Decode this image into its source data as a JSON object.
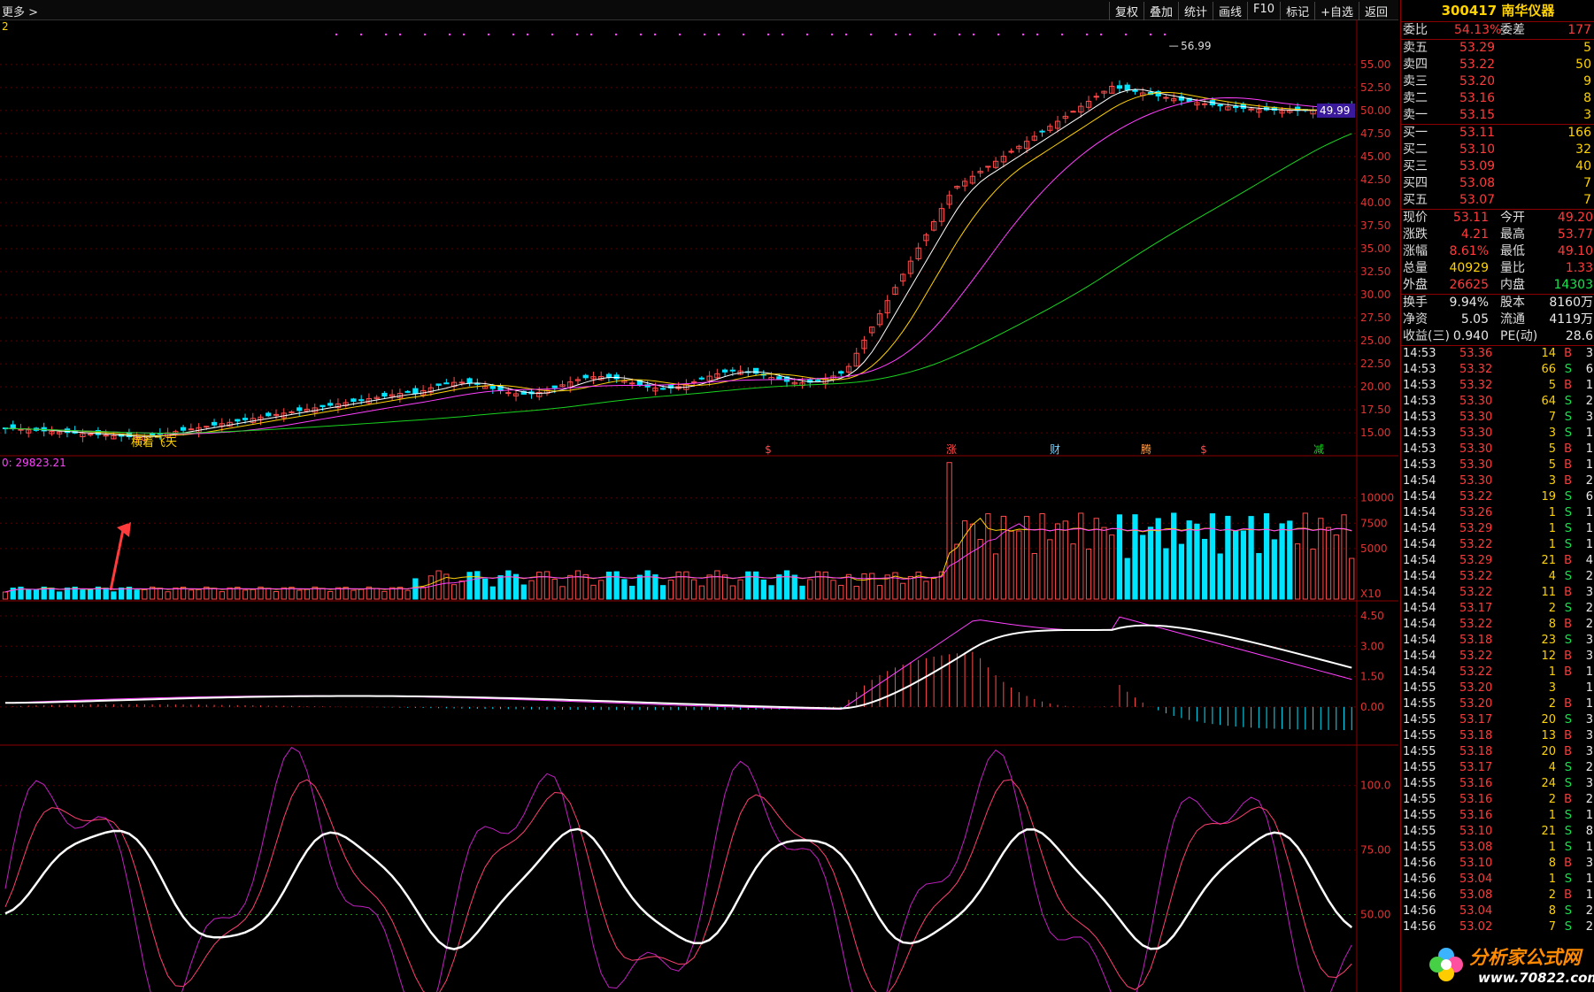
{
  "topbar": {
    "more_label": "更多 >"
  },
  "toolbar": [
    "复权",
    "叠加",
    "统计",
    "画线",
    "F10",
    "标记",
    "+自选",
    "返回"
  ],
  "chart": {
    "ma_flag": "2",
    "price_ticks": [
      "55.00",
      "52.50",
      "50.00",
      "47.50",
      "45.00",
      "42.50",
      "40.00",
      "37.50",
      "35.00",
      "32.50",
      "30.00",
      "27.50",
      "25.00",
      "22.50",
      "20.00",
      "17.50",
      "15.00"
    ],
    "high_label": "56.99",
    "current_price_badge": "49.99",
    "annotation_text": "横着飞天",
    "event_markers": [
      "$",
      "涨",
      "财",
      "腾",
      "$",
      "减"
    ],
    "volume_label": "0: 29823.21",
    "volume_ticks": [
      "10000",
      "7500",
      "5000"
    ],
    "volume_unit": "X10",
    "macd_ticks": [
      "4.50",
      "3.00",
      "1.50",
      "0.00"
    ],
    "kdj_ticks": [
      "100.0",
      "75.00",
      "50.00"
    ],
    "colors": {
      "up": "#ff4b4b",
      "down": "#00e5ff",
      "ma5": "#ffffff",
      "ma10": "#ffd200",
      "ma20": "#ff40ff",
      "ma60": "#19d31f"
    }
  },
  "quote": {
    "code": "300417",
    "name": "南华仪器",
    "weibi_label": "委比",
    "weibi_value": "54.13%",
    "weicha_label": "委差",
    "weicha_value": "177",
    "asks": [
      {
        "label": "卖五",
        "price": "53.29",
        "vol": "5"
      },
      {
        "label": "卖四",
        "price": "53.22",
        "vol": "50"
      },
      {
        "label": "卖三",
        "price": "53.20",
        "vol": "9"
      },
      {
        "label": "卖二",
        "price": "53.16",
        "vol": "8"
      },
      {
        "label": "卖一",
        "price": "53.15",
        "vol": "3"
      }
    ],
    "bids": [
      {
        "label": "买一",
        "price": "53.11",
        "vol": "166"
      },
      {
        "label": "买二",
        "price": "53.10",
        "vol": "32"
      },
      {
        "label": "买三",
        "price": "53.09",
        "vol": "40"
      },
      {
        "label": "买四",
        "price": "53.08",
        "vol": "7"
      },
      {
        "label": "买五",
        "price": "53.07",
        "vol": "7"
      }
    ],
    "stats": [
      {
        "l1": "现价",
        "v1": "53.11",
        "c1": "red",
        "l2": "今开",
        "v2": "49.20",
        "c2": "red"
      },
      {
        "l1": "涨跌",
        "v1": "4.21",
        "c1": "red",
        "l2": "最高",
        "v2": "53.77",
        "c2": "red"
      },
      {
        "l1": "涨幅",
        "v1": "8.61%",
        "c1": "red",
        "l2": "最低",
        "v2": "49.10",
        "c2": "red"
      },
      {
        "l1": "总量",
        "v1": "40929",
        "c1": "yel",
        "l2": "量比",
        "v2": "1.33",
        "c2": "red"
      },
      {
        "l1": "外盘",
        "v1": "26625",
        "c1": "red",
        "l2": "内盘",
        "v2": "14303",
        "c2": "green"
      }
    ],
    "stats2": [
      {
        "l1": "换手",
        "v1": "9.94%",
        "l2": "股本",
        "v2": "8160万"
      },
      {
        "l1": "净资",
        "v1": "5.05",
        "l2": "流通",
        "v2": "4119万"
      },
      {
        "l1": "收益(三)",
        "v1": "0.940",
        "l2": "PE(动)",
        "v2": "28.6"
      }
    ]
  },
  "ticks": [
    {
      "t": "14:53",
      "p": "53.36",
      "v": "14",
      "d": "B",
      "n": "3"
    },
    {
      "t": "14:53",
      "p": "53.32",
      "v": "66",
      "d": "S",
      "n": "6"
    },
    {
      "t": "14:53",
      "p": "53.32",
      "v": "5",
      "d": "B",
      "n": "1"
    },
    {
      "t": "14:53",
      "p": "53.30",
      "v": "64",
      "d": "S",
      "n": "2"
    },
    {
      "t": "14:53",
      "p": "53.30",
      "v": "7",
      "d": "S",
      "n": "3"
    },
    {
      "t": "14:53",
      "p": "53.30",
      "v": "3",
      "d": "S",
      "n": "1"
    },
    {
      "t": "14:53",
      "p": "53.30",
      "v": "5",
      "d": "B",
      "n": "1"
    },
    {
      "t": "14:53",
      "p": "53.30",
      "v": "5",
      "d": "B",
      "n": "1"
    },
    {
      "t": "14:54",
      "p": "53.30",
      "v": "3",
      "d": "B",
      "n": "2"
    },
    {
      "t": "14:54",
      "p": "53.22",
      "v": "19",
      "d": "S",
      "n": "6"
    },
    {
      "t": "14:54",
      "p": "53.26",
      "v": "1",
      "d": "S",
      "n": "1"
    },
    {
      "t": "14:54",
      "p": "53.29",
      "v": "1",
      "d": "S",
      "n": "1"
    },
    {
      "t": "14:54",
      "p": "53.22",
      "v": "1",
      "d": "S",
      "n": "1"
    },
    {
      "t": "14:54",
      "p": "53.29",
      "v": "21",
      "d": "B",
      "n": "4"
    },
    {
      "t": "14:54",
      "p": "53.22",
      "v": "4",
      "d": "S",
      "n": "2"
    },
    {
      "t": "14:54",
      "p": "53.22",
      "v": "11",
      "d": "B",
      "n": "3"
    },
    {
      "t": "14:54",
      "p": "53.17",
      "v": "2",
      "d": "S",
      "n": "2"
    },
    {
      "t": "14:54",
      "p": "53.22",
      "v": "8",
      "d": "B",
      "n": "2"
    },
    {
      "t": "14:54",
      "p": "53.18",
      "v": "23",
      "d": "S",
      "n": "3"
    },
    {
      "t": "14:54",
      "p": "53.22",
      "v": "12",
      "d": "B",
      "n": "3"
    },
    {
      "t": "14:54",
      "p": "53.22",
      "v": "1",
      "d": "B",
      "n": "1"
    },
    {
      "t": "14:55",
      "p": "53.20",
      "v": "3",
      "d": "",
      "n": "1"
    },
    {
      "t": "14:55",
      "p": "53.20",
      "v": "2",
      "d": "B",
      "n": "1"
    },
    {
      "t": "14:55",
      "p": "53.17",
      "v": "20",
      "d": "S",
      "n": "3"
    },
    {
      "t": "14:55",
      "p": "53.18",
      "v": "13",
      "d": "B",
      "n": "3"
    },
    {
      "t": "14:55",
      "p": "53.18",
      "v": "20",
      "d": "B",
      "n": "3"
    },
    {
      "t": "14:55",
      "p": "53.17",
      "v": "4",
      "d": "S",
      "n": "2"
    },
    {
      "t": "14:55",
      "p": "53.16",
      "v": "24",
      "d": "S",
      "n": "3"
    },
    {
      "t": "14:55",
      "p": "53.16",
      "v": "2",
      "d": "B",
      "n": "2"
    },
    {
      "t": "14:55",
      "p": "53.16",
      "v": "1",
      "d": "S",
      "n": "1"
    },
    {
      "t": "14:55",
      "p": "53.10",
      "v": "21",
      "d": "S",
      "n": "8"
    },
    {
      "t": "14:55",
      "p": "53.08",
      "v": "1",
      "d": "S",
      "n": "1"
    },
    {
      "t": "14:56",
      "p": "53.10",
      "v": "8",
      "d": "B",
      "n": "3"
    },
    {
      "t": "14:56",
      "p": "53.04",
      "v": "1",
      "d": "S",
      "n": "1"
    },
    {
      "t": "14:56",
      "p": "53.08",
      "v": "2",
      "d": "B",
      "n": "1"
    },
    {
      "t": "14:56",
      "p": "53.04",
      "v": "8",
      "d": "S",
      "n": "2"
    },
    {
      "t": "14:56",
      "p": "53.02",
      "v": "7",
      "d": "S",
      "n": "2"
    }
  ],
  "watermark": {
    "text": "分析家公式网",
    "url": "www.70822.com"
  }
}
